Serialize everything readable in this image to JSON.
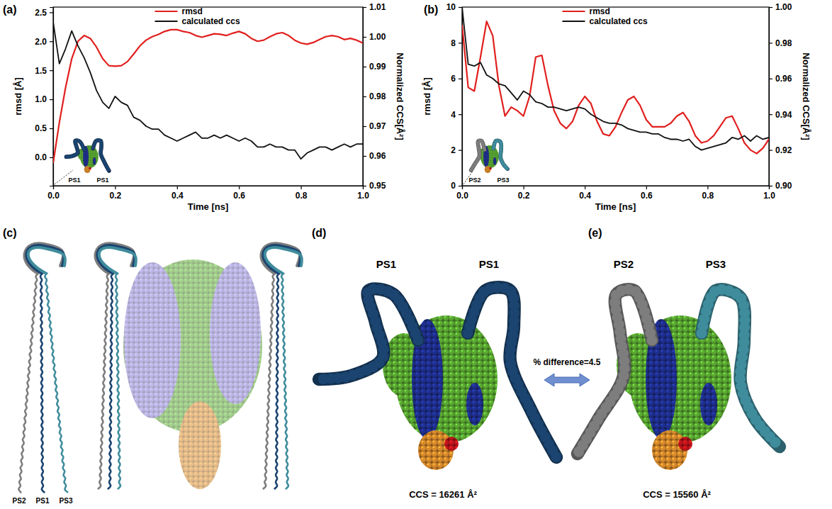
{
  "chart_data": [
    {
      "type": "line",
      "panel": "(a)",
      "xlabel": "Time [ns]",
      "ylabel": "rmsd [Å]",
      "y2label": "Normalized CCS[Å²]",
      "x": [
        0,
        0.02,
        0.04,
        0.06,
        0.08,
        0.1,
        0.12,
        0.14,
        0.16,
        0.18,
        0.2,
        0.22,
        0.24,
        0.26,
        0.28,
        0.3,
        0.32,
        0.34,
        0.36,
        0.38,
        0.4,
        0.42,
        0.44,
        0.46,
        0.48,
        0.5,
        0.52,
        0.54,
        0.56,
        0.58,
        0.6,
        0.62,
        0.64,
        0.66,
        0.68,
        0.7,
        0.72,
        0.74,
        0.76,
        0.78,
        0.8,
        0.82,
        0.84,
        0.86,
        0.88,
        0.9,
        0.92,
        0.94,
        0.96,
        0.98,
        1
      ],
      "xlim": [
        0,
        1
      ],
      "xticks": [
        {
          "value": 0,
          "label": "0.0"
        },
        0.2,
        0.4,
        0.6,
        0.8,
        {
          "value": 1,
          "label": "1.0"
        }
      ],
      "ylim": [
        -0.49,
        2.59
      ],
      "yticks": [
        {
          "value": 0,
          "label": "0.0"
        },
        0.5,
        {
          "value": 1,
          "label": "1.0"
        },
        1.5,
        {
          "value": 2,
          "label": "2.0"
        },
        2.5
      ],
      "y2lim": [
        0.95,
        1.01
      ],
      "y2ticks": [
        0.95,
        0.96,
        0.97,
        0.98,
        0.99,
        {
          "value": 1,
          "label": "1.00"
        },
        1.01
      ],
      "legend": "top",
      "annotations": [
        "PS1",
        "PS1"
      ],
      "series": [
        {
          "name": "rmsd",
          "color": "#e0201e",
          "values": [
            -0.1,
            0.6,
            1.2,
            1.7,
            2.0,
            2.1,
            2.05,
            1.9,
            1.7,
            1.58,
            1.57,
            1.58,
            1.65,
            1.78,
            1.92,
            2.02,
            2.08,
            2.12,
            2.17,
            2.2,
            2.2,
            2.17,
            2.15,
            2.1,
            2.07,
            2.1,
            2.13,
            2.12,
            2.1,
            2.14,
            2.17,
            2.13,
            2.05,
            2.0,
            2.02,
            2.08,
            2.13,
            2.15,
            2.1,
            2.02,
            1.97,
            1.95,
            1.98,
            2.03,
            2.08,
            2.1,
            2.08,
            2.03,
            2.05,
            2.02,
            1.97
          ]
        },
        {
          "name": "calculated ccs",
          "color": "#111111",
          "axis": "y2",
          "values": [
            1.005,
            0.991,
            0.996,
            1.002,
            0.997,
            0.993,
            0.988,
            0.982,
            0.978,
            0.976,
            0.98,
            0.978,
            0.977,
            0.973,
            0.972,
            0.97,
            0.969,
            0.969,
            0.967,
            0.966,
            0.965,
            0.966,
            0.967,
            0.968,
            0.966,
            0.966,
            0.967,
            0.966,
            0.967,
            0.966,
            0.965,
            0.966,
            0.965,
            0.963,
            0.963,
            0.964,
            0.963,
            0.963,
            0.962,
            0.962,
            0.959,
            0.961,
            0.962,
            0.963,
            0.963,
            0.962,
            0.963,
            0.964,
            0.963,
            0.964,
            0.964
          ]
        }
      ]
    },
    {
      "type": "line",
      "panel": "(b)",
      "xlabel": "Time [ns]",
      "ylabel": "rmsd [Å]",
      "y2label": "Normalized CCS[Å²]",
      "x": [
        0,
        0.02,
        0.04,
        0.06,
        0.08,
        0.1,
        0.12,
        0.14,
        0.16,
        0.18,
        0.2,
        0.22,
        0.24,
        0.26,
        0.28,
        0.3,
        0.32,
        0.34,
        0.36,
        0.38,
        0.4,
        0.42,
        0.44,
        0.46,
        0.48,
        0.5,
        0.52,
        0.54,
        0.56,
        0.58,
        0.6,
        0.62,
        0.64,
        0.66,
        0.68,
        0.7,
        0.72,
        0.74,
        0.76,
        0.78,
        0.8,
        0.82,
        0.84,
        0.86,
        0.88,
        0.9,
        0.92,
        0.94,
        0.96,
        0.98,
        1
      ],
      "xlim": [
        0,
        1
      ],
      "xticks": [
        {
          "value": 0,
          "label": "0.0"
        },
        0.2,
        0.4,
        0.6,
        0.8,
        {
          "value": 1,
          "label": "1.0"
        }
      ],
      "ylim": [
        0,
        10
      ],
      "yticks": [
        0,
        2,
        4,
        6,
        8,
        10
      ],
      "y2lim": [
        0.9,
        1.0
      ],
      "y2ticks": [
        {
          "value": 0.9,
          "label": "0.90"
        },
        0.92,
        0.94,
        0.96,
        0.98,
        {
          "value": 1,
          "label": "1.00"
        }
      ],
      "legend": "top",
      "annotations": [
        "PS2",
        "PS3"
      ],
      "series": [
        {
          "name": "rmsd",
          "color": "#e0201e",
          "values": [
            9.0,
            5.5,
            5.3,
            7.2,
            9.2,
            8.4,
            5.6,
            3.9,
            4.4,
            4.2,
            3.9,
            5.0,
            7.2,
            7.3,
            5.6,
            4.2,
            3.5,
            3.2,
            3.6,
            4.5,
            5.0,
            4.6,
            3.6,
            2.9,
            2.8,
            3.3,
            4.1,
            4.8,
            5.0,
            4.5,
            3.7,
            3.3,
            3.3,
            3.3,
            3.5,
            3.9,
            4.1,
            3.6,
            2.8,
            2.4,
            2.5,
            2.8,
            3.3,
            3.8,
            3.9,
            3.2,
            2.4,
            2.0,
            1.8,
            2.1,
            2.6
          ]
        },
        {
          "name": "calculated ccs",
          "color": "#111111",
          "axis": "y2",
          "values": [
            1.0,
            0.968,
            0.967,
            0.969,
            0.962,
            0.96,
            0.957,
            0.956,
            0.952,
            0.948,
            0.953,
            0.951,
            0.947,
            0.946,
            0.944,
            0.944,
            0.943,
            0.942,
            0.943,
            0.944,
            0.943,
            0.94,
            0.938,
            0.936,
            0.935,
            0.935,
            0.934,
            0.932,
            0.931,
            0.93,
            0.93,
            0.929,
            0.929,
            0.927,
            0.926,
            0.926,
            0.925,
            0.926,
            0.922,
            0.92,
            0.921,
            0.922,
            0.923,
            0.924,
            0.927,
            0.926,
            0.928,
            0.925,
            0.928,
            0.926,
            0.927
          ]
        }
      ]
    }
  ],
  "panels": {
    "c": {
      "letter": "(c)",
      "labels": [
        "PS2",
        "PS1",
        "PS3"
      ]
    },
    "d": {
      "letter": "(d)",
      "labels": [
        "PS1",
        "PS1"
      ],
      "ccs": "CCS = 16261 Å²"
    },
    "e": {
      "letter": "(e)",
      "labels": [
        "PS2",
        "PS3"
      ],
      "ccs": "CCS = 15560 Å²"
    },
    "comparison": "% difference=4.5"
  }
}
